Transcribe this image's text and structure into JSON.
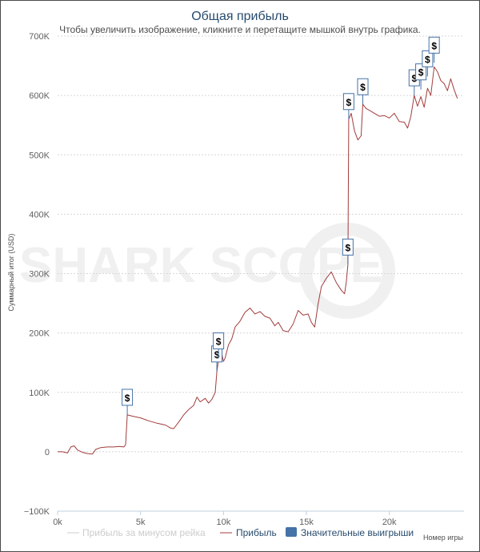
{
  "chart_data": {
    "type": "line",
    "title": "Общая прибыль",
    "subtitle": "Чтобы увеличить изображение, кликните и перетащите мышкой внутрь графика.",
    "ylabel": "Суммарный итог (USD)",
    "xlabel": "Номер игры",
    "xlim": [
      0,
      24500
    ],
    "ylim": [
      -100000,
      700000
    ],
    "x_ticks": [
      0,
      5000,
      10000,
      15000,
      20000
    ],
    "x_tick_labels": [
      "0k",
      "5k",
      "10k",
      "15k",
      "20k"
    ],
    "y_ticks": [
      -100000,
      0,
      100000,
      200000,
      300000,
      400000,
      500000,
      600000,
      700000
    ],
    "y_tick_labels": [
      "−100K",
      "0",
      "100K",
      "200K",
      "300K",
      "400K",
      "500K",
      "600K",
      "700K"
    ],
    "grid": true,
    "legend_position": "bottom",
    "watermark": "SHARK SCOPE",
    "series": [
      {
        "name": "Прибыль за минусом рейка",
        "color": "#cccccc",
        "visible": false,
        "points": []
      },
      {
        "name": "Прибыль",
        "color": "#a23c3c",
        "visible": true,
        "points": [
          [
            0,
            0
          ],
          [
            300,
            0
          ],
          [
            600,
            -2000
          ],
          [
            800,
            8000
          ],
          [
            1000,
            10000
          ],
          [
            1200,
            3000
          ],
          [
            1500,
            -1000
          ],
          [
            1800,
            -3000
          ],
          [
            2100,
            -4000
          ],
          [
            2300,
            4000
          ],
          [
            2600,
            7000
          ],
          [
            3000,
            8000
          ],
          [
            3400,
            8000
          ],
          [
            3700,
            9000
          ],
          [
            4000,
            8000
          ],
          [
            4100,
            12000
          ],
          [
            4200,
            62000
          ],
          [
            4500,
            60000
          ],
          [
            5000,
            57000
          ],
          [
            5500,
            52000
          ],
          [
            6000,
            48000
          ],
          [
            6500,
            45000
          ],
          [
            6800,
            40000
          ],
          [
            7000,
            39000
          ],
          [
            7300,
            50000
          ],
          [
            7600,
            62000
          ],
          [
            7900,
            71000
          ],
          [
            8200,
            78000
          ],
          [
            8400,
            92000
          ],
          [
            8600,
            84000
          ],
          [
            8900,
            90000
          ],
          [
            9100,
            82000
          ],
          [
            9300,
            88000
          ],
          [
            9500,
            100000
          ],
          [
            9600,
            135000
          ],
          [
            9700,
            155000
          ],
          [
            9900,
            165000
          ],
          [
            10000,
            152000
          ],
          [
            10100,
            158000
          ],
          [
            10300,
            180000
          ],
          [
            10500,
            190000
          ],
          [
            10700,
            210000
          ],
          [
            11000,
            220000
          ],
          [
            11300,
            235000
          ],
          [
            11600,
            242000
          ],
          [
            11900,
            232000
          ],
          [
            12200,
            236000
          ],
          [
            12500,
            228000
          ],
          [
            12800,
            225000
          ],
          [
            13100,
            212000
          ],
          [
            13300,
            218000
          ],
          [
            13600,
            204000
          ],
          [
            13900,
            202000
          ],
          [
            14200,
            215000
          ],
          [
            14500,
            238000
          ],
          [
            14800,
            230000
          ],
          [
            15100,
            232000
          ],
          [
            15300,
            218000
          ],
          [
            15500,
            210000
          ],
          [
            15700,
            248000
          ],
          [
            15900,
            278000
          ],
          [
            16200,
            292000
          ],
          [
            16500,
            303000
          ],
          [
            16800,
            285000
          ],
          [
            17100,
            272000
          ],
          [
            17300,
            266000
          ],
          [
            17400,
            285000
          ],
          [
            17500,
            315000
          ],
          [
            17550,
            560000
          ],
          [
            17700,
            570000
          ],
          [
            17900,
            540000
          ],
          [
            18100,
            525000
          ],
          [
            18300,
            532000
          ],
          [
            18400,
            585000
          ],
          [
            18600,
            578000
          ],
          [
            18800,
            575000
          ],
          [
            19100,
            570000
          ],
          [
            19400,
            565000
          ],
          [
            19700,
            566000
          ],
          [
            20000,
            562000
          ],
          [
            20300,
            570000
          ],
          [
            20600,
            556000
          ],
          [
            20900,
            555000
          ],
          [
            21100,
            545000
          ],
          [
            21300,
            565000
          ],
          [
            21500,
            600000
          ],
          [
            21700,
            582000
          ],
          [
            21900,
            598000
          ],
          [
            22100,
            580000
          ],
          [
            22300,
            612000
          ],
          [
            22500,
            600000
          ],
          [
            22700,
            648000
          ],
          [
            22900,
            640000
          ],
          [
            23100,
            625000
          ],
          [
            23300,
            620000
          ],
          [
            23500,
            608000
          ],
          [
            23700,
            628000
          ],
          [
            23900,
            610000
          ],
          [
            24100,
            595000
          ]
        ]
      }
    ],
    "flags": {
      "name": "Значительные выигрыши",
      "color": "#4572a7",
      "symbol": "$",
      "points": [
        [
          4200,
          62000
        ],
        [
          9600,
          135000
        ],
        [
          9700,
          157000
        ],
        [
          17500,
          315000
        ],
        [
          17550,
          560000
        ],
        [
          18400,
          585000
        ],
        [
          21500,
          600000
        ],
        [
          21900,
          610000
        ],
        [
          22300,
          632000
        ],
        [
          22700,
          655000
        ]
      ]
    }
  }
}
